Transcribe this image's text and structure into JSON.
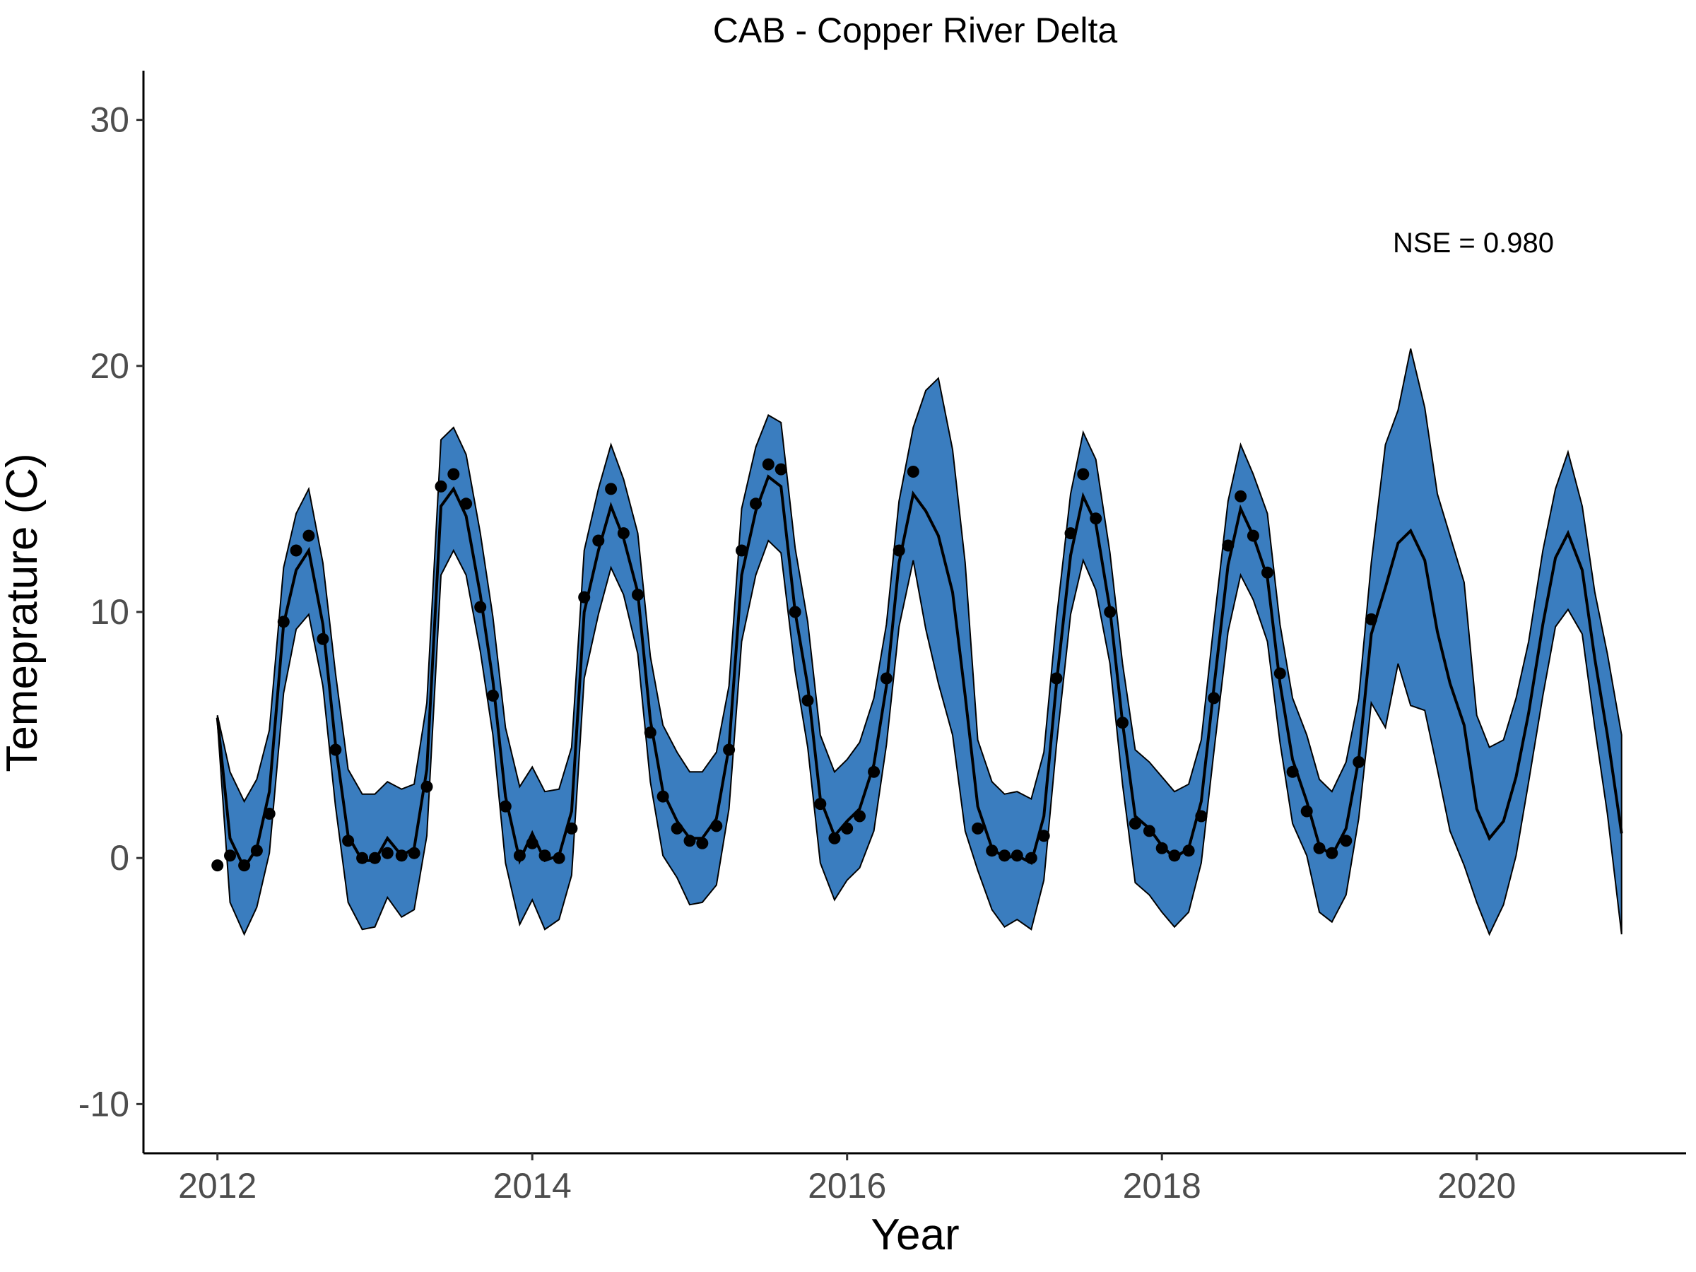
{
  "chart_data": {
    "type": "line",
    "title": "CAB - Copper River Delta",
    "xlabel": "Year",
    "ylabel": "Temeprature (C)",
    "xlim": [
      2011.53,
      2021.33
    ],
    "ylim": [
      -12,
      32
    ],
    "xticks": [
      2012,
      2014,
      2016,
      2018,
      2020
    ],
    "xtick_labels": [
      "2012",
      "2014",
      "2016",
      "2018",
      "2020"
    ],
    "yticks": [
      -10,
      0,
      10,
      20,
      30
    ],
    "ytick_labels": [
      "-10",
      "0",
      "10",
      "20",
      "30"
    ],
    "grid": false,
    "legend": false,
    "annotation": "NSE = 0.980",
    "colors": {
      "ribbon": "#3a7dbf",
      "line": "#000000",
      "points": "#000000"
    },
    "x": [
      2012.0,
      2012.08,
      2012.17,
      2012.25,
      2012.33,
      2012.42,
      2012.5,
      2012.58,
      2012.67,
      2012.75,
      2012.83,
      2012.92,
      2013.0,
      2013.08,
      2013.17,
      2013.25,
      2013.33,
      2013.42,
      2013.5,
      2013.58,
      2013.67,
      2013.75,
      2013.83,
      2013.92,
      2014.0,
      2014.08,
      2014.17,
      2014.25,
      2014.33,
      2014.42,
      2014.5,
      2014.58,
      2014.67,
      2014.75,
      2014.83,
      2014.92,
      2015.0,
      2015.08,
      2015.17,
      2015.25,
      2015.33,
      2015.42,
      2015.5,
      2015.58,
      2015.67,
      2015.75,
      2015.83,
      2015.92,
      2016.0,
      2016.08,
      2016.17,
      2016.25,
      2016.33,
      2016.42,
      2016.5,
      2016.58,
      2016.67,
      2016.75,
      2016.83,
      2016.92,
      2017.0,
      2017.08,
      2017.17,
      2017.25,
      2017.33,
      2017.42,
      2017.5,
      2017.58,
      2017.67,
      2017.75,
      2017.83,
      2017.92,
      2018.0,
      2018.08,
      2018.17,
      2018.25,
      2018.33,
      2018.42,
      2018.5,
      2018.58,
      2018.67,
      2018.75,
      2018.83,
      2018.92,
      2019.0,
      2019.08,
      2019.17,
      2019.25,
      2019.33,
      2019.42,
      2019.5,
      2019.58,
      2019.67,
      2019.75,
      2019.83,
      2019.92,
      2020.0,
      2020.08,
      2020.17,
      2020.25,
      2020.33,
      2020.42,
      2020.5,
      2020.58,
      2020.67,
      2020.75,
      2020.83,
      2020.92
    ],
    "series": [
      {
        "kind": "ribbon",
        "upper": [
          5.8,
          3.5,
          2.3,
          3.2,
          5.2,
          11.8,
          14.0,
          15.0,
          12.0,
          7.5,
          3.6,
          2.6,
          2.6,
          3.1,
          2.8,
          3.0,
          6.3,
          17.0,
          17.5,
          16.4,
          13.2,
          9.8,
          5.3,
          2.9,
          3.7,
          2.7,
          2.8,
          4.5,
          12.5,
          15.0,
          16.8,
          15.4,
          13.2,
          8.2,
          5.4,
          4.3,
          3.5,
          3.5,
          4.3,
          7.0,
          14.2,
          16.7,
          18.0,
          17.7,
          12.6,
          9.6,
          5.0,
          3.5,
          4.0,
          4.7,
          6.5,
          9.5,
          14.5,
          17.5,
          19.0,
          19.5,
          16.6,
          12.0,
          4.8,
          3.1,
          2.6,
          2.7,
          2.4,
          4.3,
          9.7,
          14.8,
          17.3,
          16.2,
          12.4,
          7.9,
          4.4,
          3.9,
          3.3,
          2.7,
          3.0,
          4.8,
          9.5,
          14.5,
          16.8,
          15.6,
          14.0,
          9.5,
          6.5,
          5.0,
          3.2,
          2.7,
          3.9,
          6.5,
          12.0,
          16.8,
          18.2,
          20.7,
          18.3,
          14.8,
          13.1,
          11.2,
          5.8,
          4.5,
          4.8,
          6.5,
          8.8,
          12.5,
          15.0,
          16.5,
          14.3,
          10.8,
          8.3,
          5.0
        ],
        "lower": [
          5.5,
          -1.8,
          -3.1,
          -2.0,
          0.2,
          6.7,
          9.3,
          9.9,
          7.0,
          2.1,
          -1.8,
          -2.9,
          -2.8,
          -1.6,
          -2.4,
          -2.1,
          0.9,
          11.5,
          12.5,
          11.5,
          8.4,
          5.0,
          -0.2,
          -2.7,
          -1.7,
          -2.9,
          -2.5,
          -0.7,
          7.3,
          9.9,
          11.8,
          10.7,
          8.3,
          3.1,
          0.1,
          -0.8,
          -1.9,
          -1.8,
          -1.1,
          2.0,
          8.8,
          11.5,
          12.9,
          12.4,
          7.6,
          4.5,
          -0.2,
          -1.7,
          -0.9,
          -0.4,
          1.1,
          4.6,
          9.4,
          12.1,
          9.3,
          7.1,
          5.0,
          1.1,
          -0.5,
          -2.1,
          -2.8,
          -2.5,
          -2.9,
          -0.9,
          4.6,
          9.9,
          12.1,
          10.9,
          7.9,
          3.0,
          -1.0,
          -1.5,
          -2.2,
          -2.8,
          -2.2,
          -0.2,
          4.3,
          9.2,
          11.5,
          10.5,
          8.8,
          4.7,
          1.4,
          0.1,
          -2.2,
          -2.6,
          -1.5,
          1.6,
          6.3,
          5.3,
          7.9,
          6.2,
          6.0,
          3.6,
          1.1,
          -0.3,
          -1.8,
          -3.1,
          -1.9,
          0.1,
          3.1,
          6.6,
          9.4,
          10.1,
          9.1,
          5.3,
          1.8,
          -3.1
        ]
      },
      {
        "kind": "line",
        "name": "",
        "values": [
          5.7,
          0.8,
          -0.4,
          0.4,
          2.7,
          9.5,
          11.7,
          12.5,
          9.5,
          4.6,
          0.9,
          -0.1,
          -0.1,
          0.8,
          0.1,
          0.4,
          3.6,
          14.3,
          15.0,
          13.9,
          10.7,
          7.2,
          2.5,
          -0.1,
          1.0,
          -0.1,
          0.1,
          1.9,
          10.0,
          12.5,
          14.3,
          13.0,
          10.8,
          5.6,
          2.7,
          1.5,
          0.8,
          0.8,
          1.6,
          4.5,
          11.5,
          14.1,
          15.5,
          15.1,
          10.0,
          7.0,
          2.4,
          0.9,
          1.5,
          2.0,
          3.8,
          7.0,
          12.0,
          14.8,
          14.1,
          13.1,
          10.8,
          6.6,
          2.1,
          0.4,
          0.0,
          0.1,
          -0.2,
          1.7,
          7.1,
          12.3,
          14.7,
          13.6,
          10.1,
          5.5,
          1.7,
          1.2,
          0.5,
          0.0,
          0.4,
          2.3,
          6.9,
          11.9,
          14.2,
          13.1,
          11.4,
          7.1,
          4.0,
          2.3,
          0.5,
          0.1,
          1.2,
          4.0,
          9.1,
          11.0,
          12.8,
          13.3,
          12.1,
          9.2,
          7.1,
          5.4,
          2.0,
          0.8,
          1.5,
          3.3,
          5.9,
          9.5,
          12.2,
          13.2,
          11.7,
          8.1,
          5.0,
          1.0
        ]
      },
      {
        "kind": "points",
        "name": "",
        "x": [
          2012.0,
          2012.08,
          2012.17,
          2012.25,
          2012.33,
          2012.42,
          2012.5,
          2012.58,
          2012.67,
          2012.75,
          2012.83,
          2012.92,
          2013.0,
          2013.08,
          2013.17,
          2013.25,
          2013.33,
          2013.42,
          2013.5,
          2013.58,
          2013.67,
          2013.75,
          2013.83,
          2013.92,
          2014.0,
          2014.08,
          2014.17,
          2014.25,
          2014.33,
          2014.42,
          2014.5,
          2014.58,
          2014.67,
          2014.75,
          2014.83,
          2014.92,
          2015.0,
          2015.08,
          2015.17,
          2015.25,
          2015.33,
          2015.42,
          2015.5,
          2015.58,
          2015.67,
          2015.75,
          2015.83,
          2015.92,
          2016.0,
          2016.08,
          2016.17,
          2016.25,
          2016.33,
          2016.42,
          2016.83,
          2016.92,
          2017.0,
          2017.08,
          2017.17,
          2017.25,
          2017.33,
          2017.42,
          2017.5,
          2017.58,
          2017.67,
          2017.75,
          2017.83,
          2017.92,
          2018.0,
          2018.08,
          2018.17,
          2018.25,
          2018.33,
          2018.42,
          2018.5,
          2018.58,
          2018.67,
          2018.75,
          2018.83,
          2018.92,
          2019.0,
          2019.08,
          2019.17,
          2019.25,
          2019.33
        ],
        "values": [
          -0.3,
          0.1,
          -0.3,
          0.3,
          1.8,
          9.6,
          12.5,
          13.1,
          8.9,
          4.4,
          0.7,
          0.0,
          0.0,
          0.2,
          0.1,
          0.2,
          2.9,
          15.1,
          15.6,
          14.4,
          10.2,
          6.6,
          2.1,
          0.1,
          0.6,
          0.1,
          0.0,
          1.2,
          10.6,
          12.9,
          15.0,
          13.2,
          10.7,
          5.1,
          2.5,
          1.2,
          0.7,
          0.6,
          1.3,
          4.4,
          12.5,
          14.4,
          16.0,
          15.8,
          10.0,
          6.4,
          2.2,
          0.8,
          1.2,
          1.7,
          3.5,
          7.3,
          12.5,
          15.7,
          1.2,
          0.3,
          0.1,
          0.1,
          0.0,
          0.9,
          7.3,
          13.2,
          15.6,
          13.8,
          10.0,
          5.5,
          1.4,
          1.1,
          0.4,
          0.1,
          0.3,
          1.7,
          6.5,
          12.7,
          14.7,
          13.1,
          11.6,
          7.5,
          3.5,
          1.9,
          0.4,
          0.2,
          0.7,
          3.9,
          9.7
        ]
      }
    ]
  }
}
